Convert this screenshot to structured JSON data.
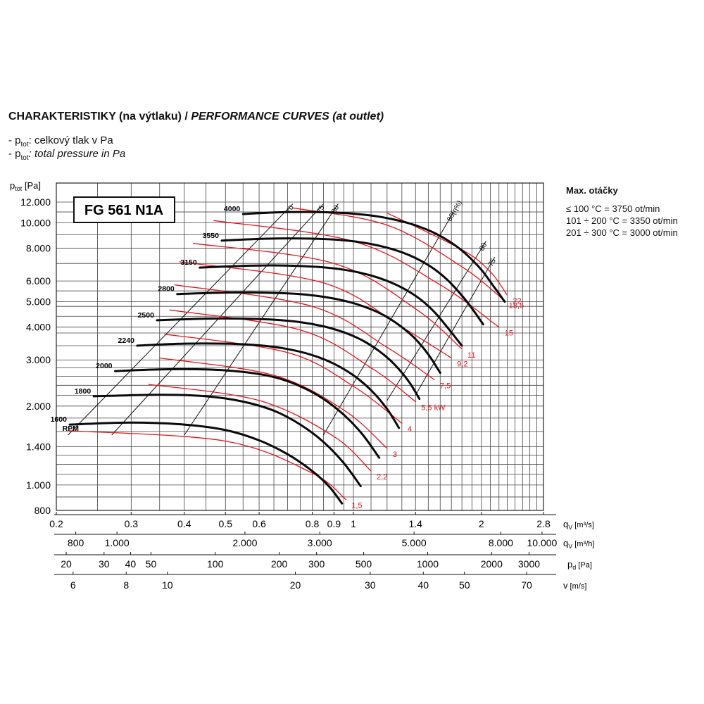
{
  "header": {
    "title_cz": "CHARAKTERISTIKY (na výtlaku) /",
    "title_en": "PERFORMANCE CURVES (at outlet)",
    "legend_cz_prefix": "- p",
    "legend_cz_sub": "tot",
    "legend_cz_text": ": celkový tlak v Pa",
    "legend_en_prefix": "- p",
    "legend_en_sub": "tot",
    "legend_en_text": ": total pressure in Pa"
  },
  "max_speed": {
    "heading": "Max. otáčky",
    "lines": [
      "≤ 100 °C = 3750 ot/min",
      "101 ÷ 200 °C = 3350 ot/min",
      "201 ÷ 300 °C = 3000 ot/min"
    ]
  },
  "chart_data": {
    "type": "line",
    "model": "FG 561 N1A",
    "x_scale": "log",
    "y_scale": "log",
    "xlim": [
      0.2,
      2.8
    ],
    "ylim": [
      800,
      12000
    ],
    "ylabel": "p",
    "ylabel_sub": "tot",
    "ylabel_unit": " [Pa]",
    "y_ticks": [
      800,
      1000,
      1400,
      2000,
      3000,
      4000,
      5000,
      6000,
      8000,
      10000,
      12000
    ],
    "y_tick_labels": [
      "800",
      "1.000",
      "1.400",
      "2.000",
      "3.000",
      "4.000",
      "5.000",
      "6.000",
      "8.000",
      "10.000",
      "12.000"
    ],
    "axes": [
      {
        "label": "q",
        "sub": "V",
        "unit": " [m³/s]",
        "ticks": [
          0.2,
          0.3,
          0.4,
          0.5,
          0.6,
          0.8,
          0.9,
          1,
          1.4,
          2,
          2.8
        ],
        "positions": [
          0.2,
          0.3,
          0.4,
          0.5,
          0.6,
          0.8,
          0.9,
          1,
          1.4,
          2,
          2.8
        ]
      },
      {
        "label": "q",
        "sub": "V",
        "unit": " [m³/h]",
        "ticks": [
          "800",
          "1.000",
          "2.000",
          "3.000",
          "5.000",
          "8.000",
          "10.000"
        ],
        "positions": [
          0.2222,
          0.2778,
          0.5556,
          0.8333,
          1.3889,
          2.2222,
          2.7778
        ]
      },
      {
        "label": "p",
        "sub": "d",
        "unit": " [Pa]",
        "ticks": [
          "20",
          "30",
          "40",
          "50",
          "100",
          "200",
          "300",
          "500",
          "1000",
          "2000",
          "3000"
        ],
        "positions": [
          0.211,
          0.259,
          0.299,
          0.334,
          0.473,
          0.669,
          0.819,
          1.057,
          1.495,
          2.114,
          2.589
        ]
      },
      {
        "label": "v",
        "sub": "",
        "unit": " [m/s]",
        "ticks": [
          "6",
          "8",
          "10",
          "20",
          "30",
          "40",
          "50",
          "70"
        ],
        "positions": [
          0.219,
          0.292,
          0.365,
          0.73,
          1.095,
          1.46,
          1.825,
          2.555
        ]
      }
    ],
    "series": [
      {
        "name": "1600",
        "x": [
          0.215,
          0.3,
          0.4,
          0.5,
          0.6,
          0.7,
          0.8,
          0.88,
          0.94
        ],
        "y": [
          1700,
          1730,
          1700,
          1620,
          1480,
          1310,
          1130,
          980,
          850
        ]
      },
      {
        "name": "1800",
        "x": [
          0.245,
          0.35,
          0.45,
          0.55,
          0.65,
          0.75,
          0.85,
          0.95,
          1.04
        ],
        "y": [
          2180,
          2210,
          2180,
          2080,
          1920,
          1700,
          1460,
          1210,
          990
        ]
      },
      {
        "name": "2000",
        "x": [
          0.275,
          0.35,
          0.45,
          0.55,
          0.65,
          0.75,
          0.85,
          0.95,
          1.05,
          1.15
        ],
        "y": [
          2720,
          2760,
          2760,
          2700,
          2580,
          2380,
          2130,
          1850,
          1560,
          1270
        ]
      },
      {
        "name": "2240",
        "x": [
          0.31,
          0.4,
          0.5,
          0.6,
          0.7,
          0.8,
          0.9,
          1.0,
          1.1,
          1.2,
          1.28
        ],
        "y": [
          3400,
          3460,
          3460,
          3410,
          3300,
          3130,
          2900,
          2620,
          2300,
          1950,
          1650
        ]
      },
      {
        "name": "2500",
        "x": [
          0.345,
          0.45,
          0.55,
          0.65,
          0.75,
          0.85,
          0.95,
          1.05,
          1.15,
          1.25,
          1.35,
          1.43
        ],
        "y": [
          4250,
          4310,
          4310,
          4270,
          4180,
          4030,
          3820,
          3560,
          3240,
          2880,
          2480,
          2130
        ]
      },
      {
        "name": "2800",
        "x": [
          0.385,
          0.5,
          0.6,
          0.7,
          0.8,
          0.9,
          1.0,
          1.1,
          1.2,
          1.3,
          1.4,
          1.5,
          1.6
        ],
        "y": [
          5350,
          5420,
          5420,
          5380,
          5290,
          5140,
          4940,
          4680,
          4370,
          4000,
          3600,
          3150,
          2680
        ]
      },
      {
        "name": "3150",
        "x": [
          0.435,
          0.55,
          0.65,
          0.75,
          0.85,
          0.95,
          1.05,
          1.15,
          1.25,
          1.35,
          1.45,
          1.55,
          1.65,
          1.8
        ],
        "y": [
          6750,
          6850,
          6880,
          6840,
          6760,
          6620,
          6420,
          6160,
          5840,
          5470,
          5050,
          4570,
          4060,
          3400
        ]
      },
      {
        "name": "3550",
        "x": [
          0.49,
          0.6,
          0.7,
          0.8,
          0.9,
          1.0,
          1.1,
          1.2,
          1.3,
          1.4,
          1.5,
          1.6,
          1.7,
          1.85,
          2.02
        ],
        "y": [
          8550,
          8680,
          8720,
          8700,
          8630,
          8500,
          8300,
          8040,
          7720,
          7340,
          6900,
          6400,
          5850,
          5000,
          4100
        ]
      },
      {
        "name": "4000",
        "x": [
          0.55,
          0.65,
          0.75,
          0.85,
          0.95,
          1.05,
          1.15,
          1.25,
          1.35,
          1.45,
          1.55,
          1.65,
          1.75,
          1.85,
          2.0,
          2.15,
          2.27
        ],
        "y": [
          10800,
          10950,
          11000,
          10980,
          10900,
          10750,
          10550,
          10280,
          9960,
          9580,
          9150,
          8660,
          8120,
          7540,
          6620,
          5650,
          5000
        ]
      }
    ],
    "power_curves": [
      {
        "name": "1,5",
        "x": [
          0.215,
          0.5,
          0.8,
          0.96
        ],
        "y": [
          1610,
          1470,
          1110,
          880
        ]
      },
      {
        "name": "2,2",
        "x": [
          0.33,
          0.6,
          0.9,
          1.1
        ],
        "y": [
          2420,
          2100,
          1530,
          1130
        ]
      },
      {
        "name": "3",
        "x": [
          0.35,
          0.65,
          0.95,
          1.2
        ],
        "y": [
          3050,
          2620,
          1930,
          1380
        ]
      },
      {
        "name": "4",
        "x": [
          0.36,
          0.7,
          1.0,
          1.3
        ],
        "y": [
          3760,
          3200,
          2380,
          1720
        ]
      },
      {
        "name": "5,5 kW",
        "x": [
          0.37,
          0.75,
          1.1,
          1.4
        ],
        "y": [
          4650,
          3900,
          2800,
          2080
        ]
      },
      {
        "name": "7,5",
        "x": [
          0.38,
          0.8,
          1.2,
          1.55
        ],
        "y": [
          5800,
          4800,
          3350,
          2520
        ]
      },
      {
        "name": "9,2",
        "x": [
          0.39,
          0.85,
          1.3,
          1.7
        ],
        "y": [
          7100,
          5900,
          4000,
          3050
        ]
      },
      {
        "name": "11",
        "x": [
          0.42,
          0.9,
          1.4,
          1.8
        ],
        "y": [
          8350,
          7000,
          4700,
          3300
        ]
      },
      {
        "name": "15",
        "x": [
          0.47,
          1.0,
          1.6,
          2.2
        ],
        "y": [
          10200,
          8500,
          5800,
          4000
        ]
      },
      {
        "name": "18,5",
        "x": [
          0.72,
          1.2,
          1.8,
          2.25
        ],
        "y": [
          11400,
          9800,
          6800,
          5100
        ]
      },
      {
        "name": "22",
        "x": [
          1.2,
          1.8,
          2.1,
          2.3
        ],
        "y": [
          10900,
          7900,
          6500,
          5300
        ]
      }
    ],
    "efficiency_lines": [
      {
        "name": "70",
        "x": [
          0.213,
          0.72
        ],
        "y": [
          1550,
          11800
        ]
      },
      {
        "name": "75",
        "x": [
          0.27,
          0.85
        ],
        "y": [
          1550,
          11800
        ]
      },
      {
        "name": "80",
        "x": [
          0.4,
          0.92
        ],
        "y": [
          1550,
          11800
        ]
      },
      {
        "name": "86(η%)",
        "x": [
          0.85,
          1.72
        ],
        "y": [
          1550,
          11000
        ]
      },
      {
        "name": "80",
        "x": [
          1.2,
          2.05
        ],
        "y": [
          2100,
          8500
        ]
      },
      {
        "name": "75",
        "x": [
          1.4,
          2.15
        ],
        "y": [
          2200,
          7400
        ]
      }
    ]
  }
}
